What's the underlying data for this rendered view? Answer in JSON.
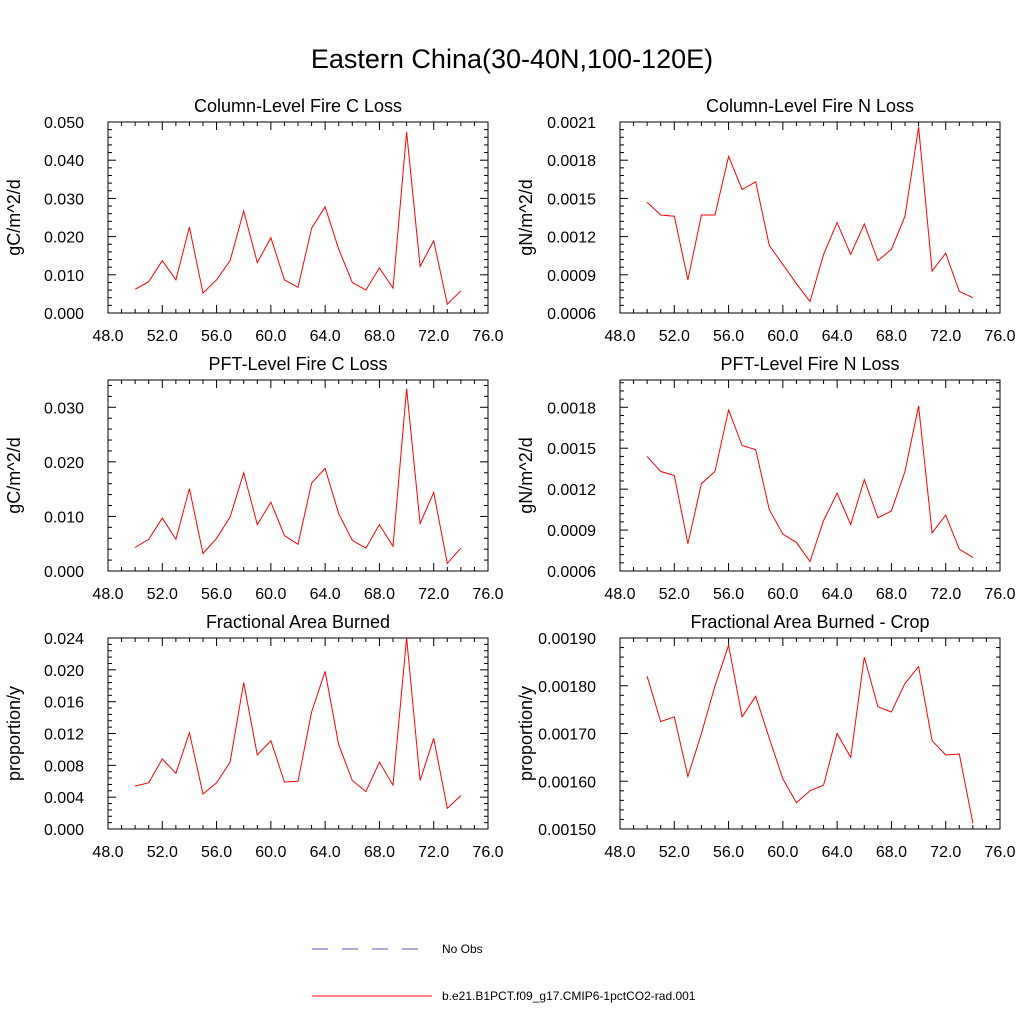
{
  "title": "Eastern China(30-40N,100-120E)",
  "colors": {
    "series": "#ff0000",
    "obs": "#5a5ab0",
    "axis": "#000000"
  },
  "legend": [
    {
      "label": "No Obs",
      "style": "dashed",
      "color": "#5a5ab0"
    },
    {
      "label": "b.e21.B1PCT.f09_g17.CMIP6-1pctCO2-rad.001",
      "style": "solid",
      "color": "#ff0000"
    }
  ],
  "chart_data": [
    {
      "type": "line",
      "title": "Column-Level Fire C Loss",
      "ylabel": "gC/m^2/d",
      "xlim": [
        48,
        76
      ],
      "ylim": [
        0,
        0.05
      ],
      "xticks": [
        48,
        52,
        56,
        60,
        64,
        68,
        72,
        76
      ],
      "xtick_labels": [
        "48.0",
        "52.0",
        "56.0",
        "60.0",
        "64.0",
        "68.0",
        "72.0",
        "76.0"
      ],
      "yticks": [
        0,
        0.01,
        0.02,
        0.03,
        0.04,
        0.05
      ],
      "ytick_labels": [
        "0.000",
        "0.010",
        "0.020",
        "0.030",
        "0.040",
        "0.050"
      ],
      "x": [
        50,
        51,
        52,
        53,
        54,
        55,
        56,
        57,
        58,
        59,
        60,
        61,
        62,
        63,
        64,
        65,
        66,
        67,
        68,
        69,
        70,
        71,
        72,
        73,
        74
      ],
      "values": [
        0.0062,
        0.0082,
        0.0137,
        0.0087,
        0.0225,
        0.0052,
        0.0087,
        0.0137,
        0.0267,
        0.0132,
        0.0197,
        0.0087,
        0.0067,
        0.0222,
        0.0278,
        0.0167,
        0.008,
        0.006,
        0.0118,
        0.0065,
        0.0474,
        0.0122,
        0.0189,
        0.0023,
        0.0058
      ]
    },
    {
      "type": "line",
      "title": "Column-Level Fire N Loss",
      "ylabel": "gN/m^2/d",
      "xlim": [
        48,
        76
      ],
      "ylim": [
        0.0006,
        0.0021
      ],
      "xticks": [
        48,
        52,
        56,
        60,
        64,
        68,
        72,
        76
      ],
      "xtick_labels": [
        "48.0",
        "52.0",
        "56.0",
        "60.0",
        "64.0",
        "68.0",
        "72.0",
        "76.0"
      ],
      "yticks": [
        0.0006,
        0.0009,
        0.0012,
        0.0015,
        0.0018,
        0.0021
      ],
      "ytick_labels": [
        "0.0006",
        "0.0009",
        "0.0012",
        "0.0015",
        "0.0018",
        "0.0021"
      ],
      "x": [
        50,
        51,
        52,
        53,
        54,
        55,
        56,
        57,
        58,
        59,
        60,
        61,
        62,
        63,
        64,
        65,
        66,
        67,
        68,
        69,
        70,
        71,
        72,
        73,
        74
      ],
      "values": [
        0.00147,
        0.00137,
        0.00136,
        0.00086,
        0.00137,
        0.00137,
        0.00183,
        0.00157,
        0.00163,
        0.00113,
        0.00098,
        0.00083,
        0.00069,
        0.00106,
        0.00131,
        0.00106,
        0.0013,
        0.00101,
        0.0011,
        0.00136,
        0.00206,
        0.00093,
        0.00107,
        0.00077,
        0.00072
      ]
    },
    {
      "type": "line",
      "title": "PFT-Level Fire C Loss",
      "ylabel": "gC/m^2/d",
      "xlim": [
        48,
        76
      ],
      "ylim": [
        0,
        0.035
      ],
      "xticks": [
        48,
        52,
        56,
        60,
        64,
        68,
        72,
        76
      ],
      "xtick_labels": [
        "48.0",
        "52.0",
        "56.0",
        "60.0",
        "64.0",
        "68.0",
        "72.0",
        "76.0"
      ],
      "yticks": [
        0,
        0.01,
        0.02,
        0.03
      ],
      "ytick_labels": [
        "0.000",
        "0.010",
        "0.020",
        "0.030"
      ],
      "x": [
        50,
        51,
        52,
        53,
        54,
        55,
        56,
        57,
        58,
        59,
        60,
        61,
        62,
        63,
        64,
        65,
        66,
        67,
        68,
        69,
        70,
        71,
        72,
        73,
        74
      ],
      "values": [
        0.0043,
        0.0058,
        0.0097,
        0.0058,
        0.0151,
        0.0032,
        0.006,
        0.0099,
        0.018,
        0.0085,
        0.0126,
        0.0065,
        0.0049,
        0.0161,
        0.0188,
        0.0105,
        0.0056,
        0.0042,
        0.0085,
        0.0045,
        0.0334,
        0.0087,
        0.0144,
        0.0014,
        0.0042
      ]
    },
    {
      "type": "line",
      "title": "PFT-Level Fire N Loss",
      "ylabel": "gN/m^2/d",
      "xlim": [
        48,
        76
      ],
      "ylim": [
        0.0006,
        0.002
      ],
      "xticks": [
        48,
        52,
        56,
        60,
        64,
        68,
        72,
        76
      ],
      "xtick_labels": [
        "48.0",
        "52.0",
        "56.0",
        "60.0",
        "64.0",
        "68.0",
        "72.0",
        "76.0"
      ],
      "yticks": [
        0.0006,
        0.0009,
        0.0012,
        0.0015,
        0.0018
      ],
      "ytick_labels": [
        "0.0006",
        "0.0009",
        "0.0012",
        "0.0015",
        "0.0018"
      ],
      "x": [
        50,
        51,
        52,
        53,
        54,
        55,
        56,
        57,
        58,
        59,
        60,
        61,
        62,
        63,
        64,
        65,
        66,
        67,
        68,
        69,
        70,
        71,
        72,
        73,
        74
      ],
      "values": [
        0.00144,
        0.00133,
        0.0013,
        0.0008,
        0.00124,
        0.00133,
        0.00178,
        0.00152,
        0.00149,
        0.00105,
        0.00087,
        0.00081,
        0.00067,
        0.00097,
        0.00117,
        0.00094,
        0.00127,
        0.00099,
        0.00104,
        0.00133,
        0.00181,
        0.00088,
        0.00101,
        0.00076,
        0.0007
      ]
    },
    {
      "type": "line",
      "title": "Fractional Area Burned",
      "ylabel": "proportion/y",
      "xlim": [
        48,
        76
      ],
      "ylim": [
        0,
        0.024
      ],
      "xticks": [
        48,
        52,
        56,
        60,
        64,
        68,
        72,
        76
      ],
      "xtick_labels": [
        "48.0",
        "52.0",
        "56.0",
        "60.0",
        "64.0",
        "68.0",
        "72.0",
        "76.0"
      ],
      "yticks": [
        0,
        0.004,
        0.008,
        0.012,
        0.016,
        0.02,
        0.024
      ],
      "ytick_labels": [
        "0.000",
        "0.004",
        "0.008",
        "0.012",
        "0.016",
        "0.020",
        "0.024"
      ],
      "x": [
        50,
        51,
        52,
        53,
        54,
        55,
        56,
        57,
        58,
        59,
        60,
        61,
        62,
        63,
        64,
        65,
        66,
        67,
        68,
        69,
        70,
        71,
        72,
        73,
        74
      ],
      "values": [
        0.0054,
        0.0058,
        0.0088,
        0.007,
        0.0121,
        0.0044,
        0.0058,
        0.0084,
        0.0184,
        0.0093,
        0.0111,
        0.0059,
        0.006,
        0.0147,
        0.0198,
        0.0106,
        0.0061,
        0.0047,
        0.0084,
        0.0055,
        0.024,
        0.0061,
        0.0114,
        0.0026,
        0.0042
      ]
    },
    {
      "type": "line",
      "title": "Fractional Area Burned - Crop",
      "ylabel": "proportion/y",
      "xlim": [
        48,
        76
      ],
      "ylim": [
        0.0015,
        0.0019
      ],
      "xticks": [
        48,
        52,
        56,
        60,
        64,
        68,
        72,
        76
      ],
      "xtick_labels": [
        "48.0",
        "52.0",
        "56.0",
        "60.0",
        "64.0",
        "68.0",
        "72.0",
        "76.0"
      ],
      "yticks": [
        0.0015,
        0.0016,
        0.0017,
        0.0018,
        0.0019
      ],
      "ytick_labels": [
        "0.00150",
        "0.00160",
        "0.00170",
        "0.00180",
        "0.00190"
      ],
      "x": [
        50,
        51,
        52,
        53,
        54,
        55,
        56,
        57,
        58,
        59,
        60,
        61,
        62,
        63,
        64,
        65,
        66,
        67,
        68,
        69,
        70,
        71,
        72,
        73,
        74
      ],
      "values": [
        0.00182,
        0.001725,
        0.001735,
        0.00161,
        0.0017,
        0.0018,
        0.001885,
        0.001735,
        0.001778,
        0.00169,
        0.001605,
        0.001555,
        0.00158,
        0.001592,
        0.0017,
        0.00165,
        0.00186,
        0.001756,
        0.001745,
        0.001805,
        0.00184,
        0.001685,
        0.001655,
        0.001657,
        0.001512
      ]
    }
  ]
}
